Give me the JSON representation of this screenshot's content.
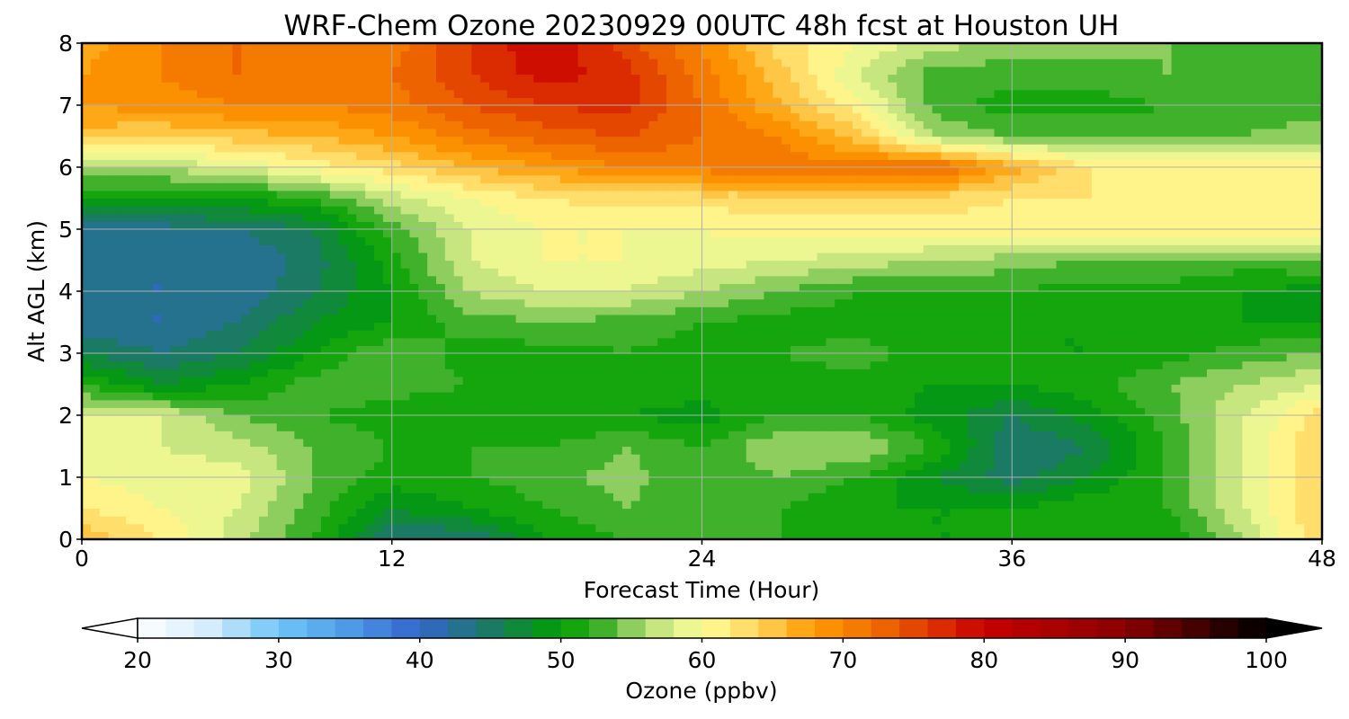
{
  "chart_data": {
    "type": "heatmap",
    "title": "WRF-Chem Ozone  20230929 00UTC 48h fcst at Houston UH",
    "xlabel": "Forecast Time (Hour)",
    "ylabel": "Alt AGL (km)",
    "xlim": [
      0,
      48
    ],
    "ylim": [
      0,
      8
    ],
    "x_ticks": [
      "0",
      "12",
      "24",
      "36",
      "48"
    ],
    "y_ticks": [
      "0",
      "1",
      "2",
      "3",
      "4",
      "5",
      "6",
      "7",
      "8"
    ],
    "grid": true,
    "x": [
      0,
      3,
      6,
      9,
      12,
      15,
      18,
      21,
      24,
      27,
      30,
      33,
      36,
      39,
      42,
      45,
      48
    ],
    "y": [
      0,
      0.5,
      1,
      1.5,
      2,
      2.5,
      3,
      3.5,
      4,
      4.5,
      5,
      5.5,
      6,
      6.5,
      7,
      7.5,
      8
    ],
    "z": [
      [
        66,
        62,
        57,
        52,
        44,
        44,
        50,
        52,
        52,
        52,
        50,
        50,
        50,
        50,
        50,
        56,
        64
      ],
      [
        62,
        60,
        58,
        53,
        48,
        50,
        52,
        54,
        52,
        52,
        50,
        50,
        50,
        52,
        52,
        58,
        64
      ],
      [
        60,
        59,
        59,
        54,
        51,
        52,
        53,
        55,
        52,
        54,
        52,
        48,
        45,
        48,
        52,
        58,
        64
      ],
      [
        59,
        58,
        57,
        54,
        52,
        52,
        52,
        54,
        52,
        56,
        56,
        52,
        44,
        46,
        52,
        58,
        64
      ],
      [
        58,
        58,
        54,
        52,
        51,
        50,
        50,
        50,
        49,
        52,
        52,
        49,
        46,
        49,
        53,
        58,
        63
      ],
      [
        52,
        48,
        50,
        53,
        53,
        52,
        52,
        52,
        51,
        51,
        51,
        50,
        50,
        51,
        54,
        56,
        58
      ],
      [
        46,
        44,
        46,
        50,
        54,
        51,
        51,
        52,
        51,
        52,
        53,
        51,
        50,
        50,
        51,
        53,
        54
      ],
      [
        42,
        42,
        44,
        48,
        50,
        53,
        54,
        53,
        52,
        51,
        51,
        50,
        50,
        50,
        51,
        50,
        50
      ],
      [
        42,
        42,
        42,
        46,
        50,
        56,
        58,
        58,
        56,
        54,
        52,
        52,
        52,
        51,
        51,
        50,
        49
      ],
      [
        42,
        42,
        42,
        45,
        51,
        58,
        60,
        60,
        59,
        58,
        57,
        56,
        55,
        54,
        54,
        53,
        54
      ],
      [
        43,
        43,
        44,
        46,
        53,
        58,
        60,
        60,
        60,
        61,
        61,
        61,
        61,
        61,
        61,
        61,
        61
      ],
      [
        50,
        50,
        50,
        52,
        57,
        60,
        62,
        63,
        63,
        63,
        63,
        63,
        62,
        62,
        61,
        61,
        61
      ],
      [
        56,
        56,
        58,
        61,
        63,
        66,
        68,
        70,
        71,
        71,
        71,
        73,
        67,
        62,
        61,
        61,
        61
      ],
      [
        65,
        64,
        65,
        66,
        68,
        71,
        73,
        74,
        72,
        70,
        65,
        56,
        54,
        54,
        53,
        54,
        55
      ],
      [
        68,
        69,
        70,
        70,
        71,
        74,
        76,
        77,
        72,
        66,
        61,
        53,
        51,
        51,
        52,
        53,
        53
      ],
      [
        68,
        70,
        72,
        72,
        72,
        76,
        79,
        77,
        71,
        65,
        58,
        53,
        53,
        53,
        54,
        53,
        54
      ],
      [
        67,
        70,
        72,
        71,
        71,
        76,
        80,
        75,
        70,
        63,
        60,
        57,
        55,
        55,
        54,
        54,
        54
      ]
    ],
    "colorbar": {
      "label": "Ozone  (ppbv)",
      "ticks": [
        "20",
        "30",
        "40",
        "50",
        "60",
        "70",
        "80",
        "90",
        "100"
      ],
      "min": 20,
      "max": 100,
      "extend": "both"
    },
    "colormap": [
      [
        20,
        "#ffffff"
      ],
      [
        25,
        "#d4ecfb"
      ],
      [
        30,
        "#6fc7f7"
      ],
      [
        35,
        "#4d9ae6"
      ],
      [
        40,
        "#3366cc"
      ],
      [
        45,
        "#1a7a63"
      ],
      [
        50,
        "#00a000"
      ],
      [
        53,
        "#3fb12a"
      ],
      [
        56,
        "#b5dd78"
      ],
      [
        60,
        "#ffff99"
      ],
      [
        64,
        "#ffd35b"
      ],
      [
        68,
        "#ff9a00"
      ],
      [
        72,
        "#f07000"
      ],
      [
        76,
        "#e03b00"
      ],
      [
        80,
        "#c80000"
      ],
      [
        90,
        "#8a0000"
      ],
      [
        100,
        "#000000"
      ]
    ]
  }
}
